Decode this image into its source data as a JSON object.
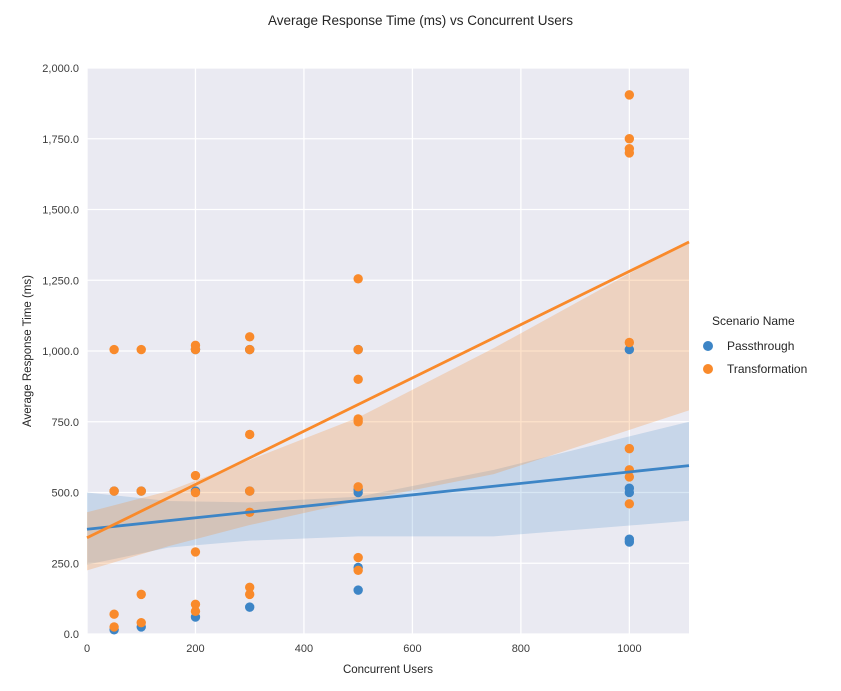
{
  "figure": {
    "title": "Average Response Time (ms) vs Concurrent Users"
  },
  "chart_data": {
    "type": "scatter",
    "title": "Average Response Time (ms) vs Concurrent Users",
    "xlabel": "Concurrent Users",
    "ylabel": "Average Response Time (ms)",
    "xlim": [
      0,
      1110
    ],
    "ylim": [
      0,
      2000
    ],
    "x_ticks": [
      0,
      200,
      400,
      600,
      800,
      1000
    ],
    "x_tick_labels": [
      "0",
      "200",
      "400",
      "600",
      "800",
      "1000"
    ],
    "y_ticks": [
      0,
      250,
      500,
      750,
      1000,
      1250,
      1500,
      1750,
      2000
    ],
    "y_tick_labels": [
      "0.0",
      "250.0",
      "500.0",
      "750.0",
      "1,000.0",
      "1,250.0",
      "1,500.0",
      "1,750.0",
      "2,000.0"
    ],
    "grid": true,
    "plot_background": "#eaeaf2",
    "gridline_color": "#ffffff",
    "legend": {
      "title": "Scenario Name",
      "position": "right",
      "entries": [
        "Passthrough",
        "Transformation"
      ]
    },
    "series": [
      {
        "name": "Passthrough",
        "color": "#3d85c6",
        "ci_opacity": 0.2,
        "points": [
          [
            50,
            505
          ],
          [
            50,
            15
          ],
          [
            100,
            505
          ],
          [
            100,
            25
          ],
          [
            200,
            1005
          ],
          [
            200,
            505
          ],
          [
            200,
            60
          ],
          [
            300,
            1005
          ],
          [
            300,
            505
          ],
          [
            300,
            95
          ],
          [
            500,
            1005
          ],
          [
            500,
            510
          ],
          [
            500,
            500
          ],
          [
            500,
            235
          ],
          [
            500,
            155
          ],
          [
            1000,
            1005
          ],
          [
            1000,
            515
          ],
          [
            1000,
            500
          ],
          [
            1000,
            335
          ],
          [
            1000,
            325
          ]
        ],
        "regression": {
          "x": [
            0,
            1110
          ],
          "y": [
            370,
            595
          ]
        },
        "ci": {
          "x": [
            0,
            150,
            300,
            500,
            750,
            1110
          ],
          "low": [
            245,
            305,
            330,
            345,
            345,
            400
          ],
          "high": [
            500,
            470,
            465,
            485,
            580,
            750
          ]
        }
      },
      {
        "name": "Transformation",
        "color": "#f98a2b",
        "ci_opacity": 0.25,
        "points": [
          [
            50,
            1005
          ],
          [
            50,
            505
          ],
          [
            50,
            70
          ],
          [
            50,
            25
          ],
          [
            100,
            1005
          ],
          [
            100,
            505
          ],
          [
            100,
            140
          ],
          [
            100,
            40
          ],
          [
            200,
            1020
          ],
          [
            200,
            1005
          ],
          [
            200,
            560
          ],
          [
            200,
            500
          ],
          [
            200,
            290
          ],
          [
            200,
            105
          ],
          [
            200,
            80
          ],
          [
            300,
            1050
          ],
          [
            300,
            1005
          ],
          [
            300,
            705
          ],
          [
            300,
            505
          ],
          [
            300,
            430
          ],
          [
            300,
            165
          ],
          [
            300,
            140
          ],
          [
            500,
            1255
          ],
          [
            500,
            1005
          ],
          [
            500,
            900
          ],
          [
            500,
            760
          ],
          [
            500,
            750
          ],
          [
            500,
            520
          ],
          [
            500,
            270
          ],
          [
            500,
            225
          ],
          [
            1000,
            1905
          ],
          [
            1000,
            1750
          ],
          [
            1000,
            1715
          ],
          [
            1000,
            1700
          ],
          [
            1000,
            1030
          ],
          [
            1000,
            655
          ],
          [
            1000,
            580
          ],
          [
            1000,
            555
          ],
          [
            1000,
            460
          ]
        ],
        "regression": {
          "x": [
            0,
            1110
          ],
          "y": [
            340,
            1385
          ]
        },
        "ci": {
          "x": [
            0,
            150,
            300,
            500,
            750,
            1110
          ],
          "low": [
            225,
            310,
            385,
            470,
            565,
            790
          ],
          "high": [
            430,
            505,
            615,
            765,
            1010,
            1390
          ]
        }
      }
    ]
  }
}
